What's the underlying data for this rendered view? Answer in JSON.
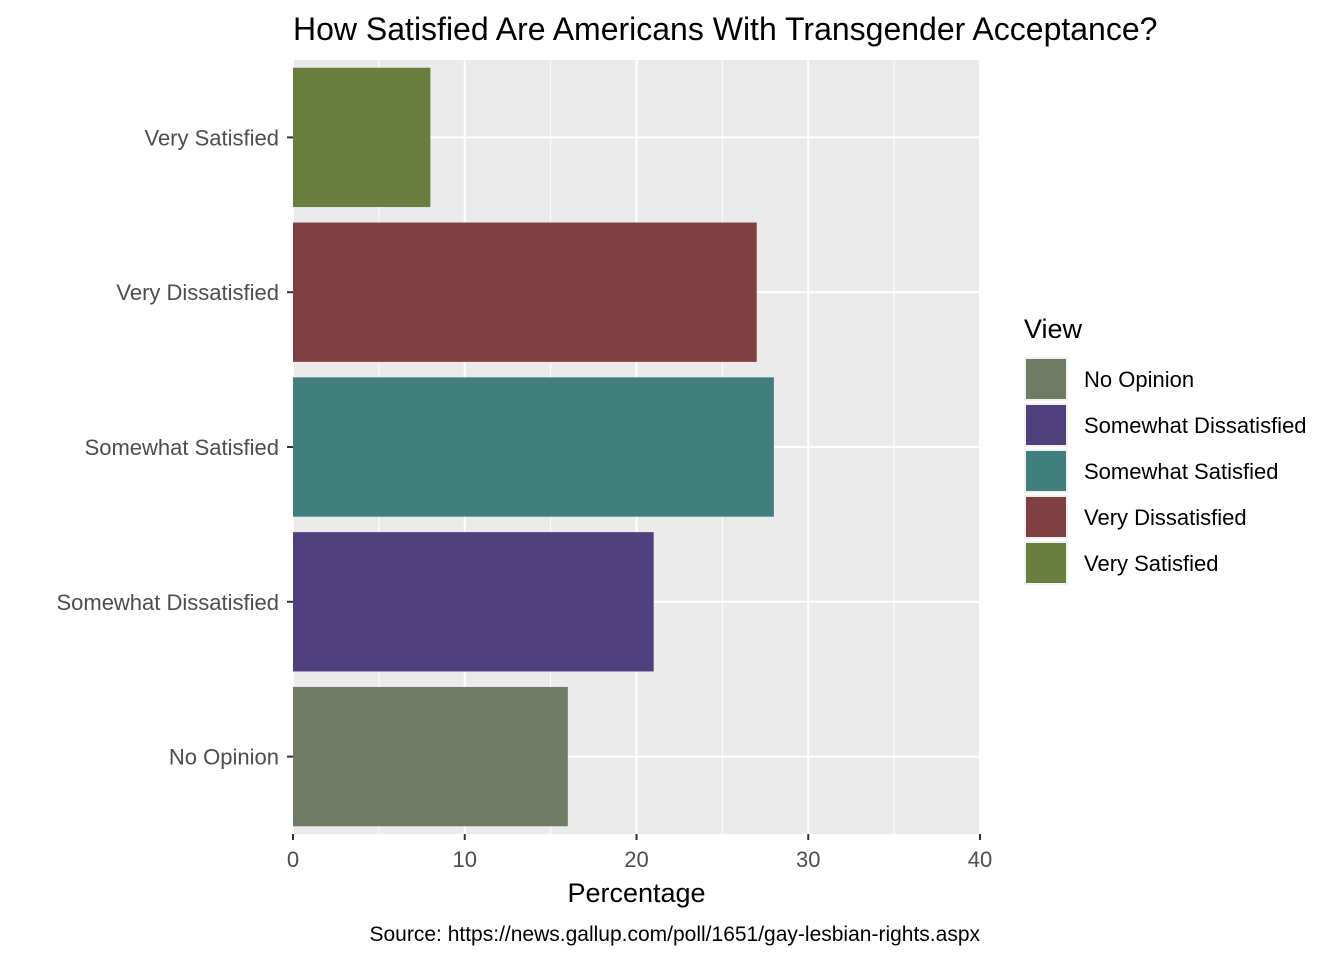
{
  "chart_data": {
    "type": "bar",
    "orientation": "horizontal",
    "title": "How Satisfied Are Americans With Transgender Acceptance?",
    "xlabel": "Percentage",
    "ylabel": "",
    "caption": "Source: https://news.gallup.com/poll/1651/gay-lesbian-rights.aspx",
    "xlim": [
      0,
      40
    ],
    "x_ticks": [
      0,
      10,
      20,
      30,
      40
    ],
    "grid": true,
    "categories": [
      "No Opinion",
      "Somewhat Dissatisfied",
      "Somewhat Satisfied",
      "Very Dissatisfied",
      "Very Satisfied"
    ],
    "values": [
      16,
      21,
      28,
      27,
      8
    ],
    "colors": [
      "#6f7b62",
      "#50407e",
      "#417e7e",
      "#7f4041",
      "#6a7f3f"
    ],
    "legend": {
      "title": "View",
      "position": "right",
      "entries": [
        "No Opinion",
        "Somewhat Dissatisfied",
        "Somewhat Satisfied",
        "Very Dissatisfied",
        "Very Satisfied"
      ]
    },
    "panel_background": "#ebebeb",
    "grid_color": "#ffffff"
  }
}
